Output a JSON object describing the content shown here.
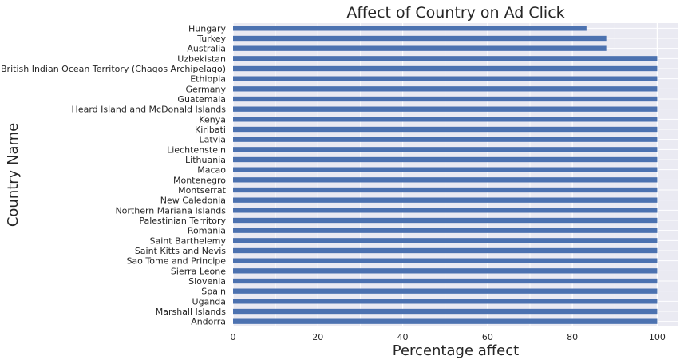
{
  "chart_data": {
    "type": "bar",
    "orientation": "horizontal",
    "title": "Affect of Country on Ad Click",
    "xlabel": "Percentage affect",
    "ylabel": "Country Name",
    "xlim": [
      0,
      105
    ],
    "xticks": [
      0,
      20,
      40,
      60,
      80,
      100
    ],
    "grid": true,
    "bar_color": "#4c72b0",
    "background_color": "#eaeaf2",
    "grid_color": "#ffffff",
    "categories": [
      "Hungary",
      "Turkey",
      "Australia",
      "Uzbekistan",
      "British Indian Ocean Territory (Chagos Archipelago)",
      "Ethiopia",
      "Germany",
      "Guatemala",
      "Heard Island and McDonald Islands",
      "Kenya",
      "Kiribati",
      "Latvia",
      "Liechtenstein",
      "Lithuania",
      "Macao",
      "Montenegro",
      "Montserrat",
      "New Caledonia",
      "Northern Mariana Islands",
      "Palestinian Territory",
      "Romania",
      "Saint Barthelemy",
      "Saint Kitts and Nevis",
      "Sao Tome and Principe",
      "Sierra Leone",
      "Slovenia",
      "Spain",
      "Uganda",
      "Marshall Islands",
      "Andorra"
    ],
    "values": [
      83.33,
      88.0,
      88.0,
      100,
      100,
      100,
      100,
      100,
      100,
      100,
      100,
      100,
      100,
      100,
      100,
      100,
      100,
      100,
      100,
      100,
      100,
      100,
      100,
      100,
      100,
      100,
      100,
      100,
      100,
      100
    ]
  }
}
